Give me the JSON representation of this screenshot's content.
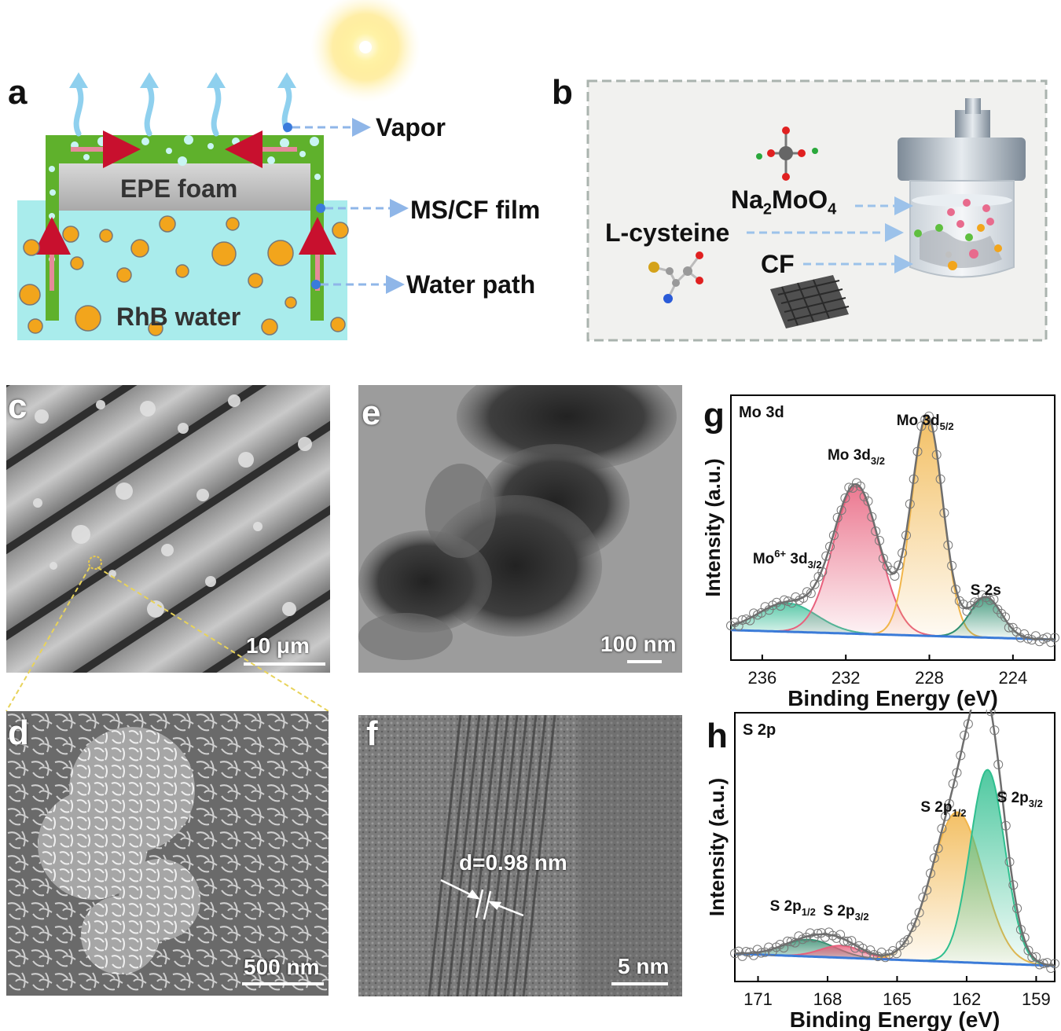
{
  "panels": {
    "a": {
      "letter": "a",
      "foam_label": "EPE foam",
      "water_label": "RhB water",
      "vapor_label": "Vapor",
      "film_label": "MS/CF film",
      "path_label": "Water path"
    },
    "b": {
      "letter": "b",
      "na_label_main": "Na",
      "na_sub1": "2",
      "na_mid": "MoO",
      "na_sub2": "4",
      "cys_label": "L-cysteine",
      "cf_label": "CF"
    },
    "c": {
      "letter": "c",
      "scale": "10 μm"
    },
    "d": {
      "letter": "d",
      "scale": "500 nm"
    },
    "e": {
      "letter": "e",
      "scale": "100 nm"
    },
    "f": {
      "letter": "f",
      "scale": "5 nm",
      "spacing": "d=0.98 nm"
    },
    "g": {
      "letter": "g"
    },
    "h": {
      "letter": "h"
    }
  },
  "chart_data": [
    {
      "type": "line",
      "panel": "g",
      "title": "Mo 3d",
      "xlabel": "Binding Energy (eV)",
      "ylabel": "Intensity (a.u.)",
      "x_reversed": true,
      "xlim": [
        237.5,
        222
      ],
      "xticks": [
        236,
        232,
        228,
        224
      ],
      "annotations": [
        {
          "text": "Mo",
          "sup": "6+",
          "rest": " 3d",
          "sub": "3/2",
          "x": 234.8
        },
        {
          "text": "Mo 3d",
          "sub": "3/2",
          "x": 231.5
        },
        {
          "text": "Mo 3d",
          "sub": "5/2",
          "x": 228.2
        },
        {
          "text": "S 2s",
          "x": 225.3
        }
      ],
      "peaks": [
        {
          "name": "Mo6+ 3d3/2",
          "center": 234.8,
          "height": 0.12,
          "width": 1.4,
          "color": "#3fbf9a"
        },
        {
          "name": "Mo 3d3/2",
          "center": 231.5,
          "height": 0.62,
          "width": 1.1,
          "color": "#e8617d"
        },
        {
          "name": "Mo 3d5/2",
          "center": 228.1,
          "height": 0.92,
          "width": 0.75,
          "color": "#f1b54a"
        },
        {
          "name": "S 2s",
          "center": 225.3,
          "height": 0.17,
          "width": 0.75,
          "color": "#2f8f6f"
        }
      ],
      "baseline": {
        "start": 0.06,
        "end": 0.02
      }
    },
    {
      "type": "line",
      "panel": "h",
      "title": "S 2p",
      "xlabel": "Binding Energy (eV)",
      "ylabel": "Intensity (a.u.)",
      "x_reversed": true,
      "xlim": [
        172,
        158.2
      ],
      "xticks": [
        171,
        168,
        165,
        162,
        159
      ],
      "annotations": [
        {
          "text": "S 2p",
          "sub": "1/2",
          "x": 169.5
        },
        {
          "text": "S 2p",
          "sub": "3/2",
          "x": 167.2
        },
        {
          "text": "S 2p",
          "sub": "1/2",
          "x": 163.0
        },
        {
          "text": "S 2p",
          "sub": "3/2",
          "x": 159.7
        }
      ],
      "peaks": [
        {
          "name": "S 2p1/2 (oxidized)",
          "center": 168.8,
          "height": 0.07,
          "width": 1.1,
          "color": "#3a8f72"
        },
        {
          "name": "S 2p3/2 (oxidized)",
          "center": 167.4,
          "height": 0.05,
          "width": 0.9,
          "color": "#e8617d"
        },
        {
          "name": "S 2p1/2",
          "center": 162.4,
          "height": 0.62,
          "width": 1.1,
          "color": "#f1b54a"
        },
        {
          "name": "S 2p3/2",
          "center": 161.1,
          "height": 0.8,
          "width": 0.75,
          "color": "#2fbf8f"
        }
      ],
      "baseline": {
        "start": 0.05,
        "end": 0.0
      }
    }
  ]
}
